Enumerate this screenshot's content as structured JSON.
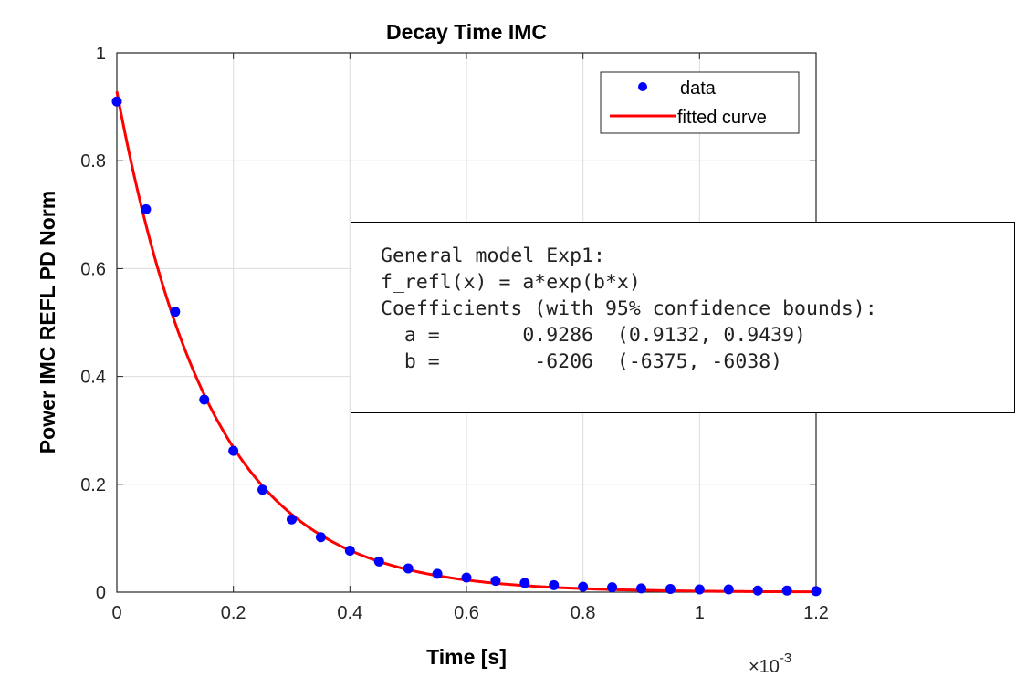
{
  "chart_data": {
    "type": "scatter",
    "title": "Decay Time IMC",
    "xlabel": "Time [s]",
    "ylabel": "Power IMC REFL PD Norm",
    "x_exponent_label": "×10",
    "x_exponent": "-3",
    "xlim": [
      0,
      0.0012
    ],
    "ylim": [
      0,
      1
    ],
    "x_ticks": [
      0,
      0.0002,
      0.0004,
      0.0006,
      0.0008,
      0.001,
      0.0012
    ],
    "x_tick_labels": [
      "0",
      "0.2",
      "0.4",
      "0.6",
      "0.8",
      "1",
      "1.2"
    ],
    "y_ticks": [
      0,
      0.2,
      0.4,
      0.6,
      0.8,
      1
    ],
    "y_tick_labels": [
      "0",
      "0.2",
      "0.4",
      "0.6",
      "0.8",
      "1"
    ],
    "grid": true,
    "legend_position": "top-right",
    "series": [
      {
        "name": "data",
        "kind": "markers",
        "color": "#0000ff",
        "x": [
          0,
          5e-05,
          0.0001,
          0.00015,
          0.0002,
          0.00025,
          0.0003,
          0.00035,
          0.0004,
          0.00045,
          0.0005,
          0.00055,
          0.0006,
          0.00065,
          0.0007,
          0.00075,
          0.0008,
          0.00085,
          0.0009,
          0.00095,
          0.001,
          0.00105,
          0.0011,
          0.00115,
          0.0012
        ],
        "y": [
          0.91,
          0.71,
          0.52,
          0.357,
          0.262,
          0.19,
          0.135,
          0.102,
          0.077,
          0.057,
          0.044,
          0.034,
          0.027,
          0.021,
          0.017,
          0.013,
          0.01,
          0.009,
          0.007,
          0.006,
          0.005,
          0.005,
          0.003,
          0.003,
          0.002
        ]
      },
      {
        "name": "fitted curve",
        "kind": "line",
        "color": "#ff0000",
        "model": {
          "a": 0.9286,
          "b": -6206
        }
      }
    ]
  },
  "fit_summary": {
    "lines": [
      "General model Exp1:",
      "f_refl(x) = a*exp(b*x)",
      "Coefficients (with 95% confidence bounds):",
      "  a =       0.9286  (0.9132, 0.9439)",
      "  b =        -6206  (-6375, -6038)"
    ]
  }
}
